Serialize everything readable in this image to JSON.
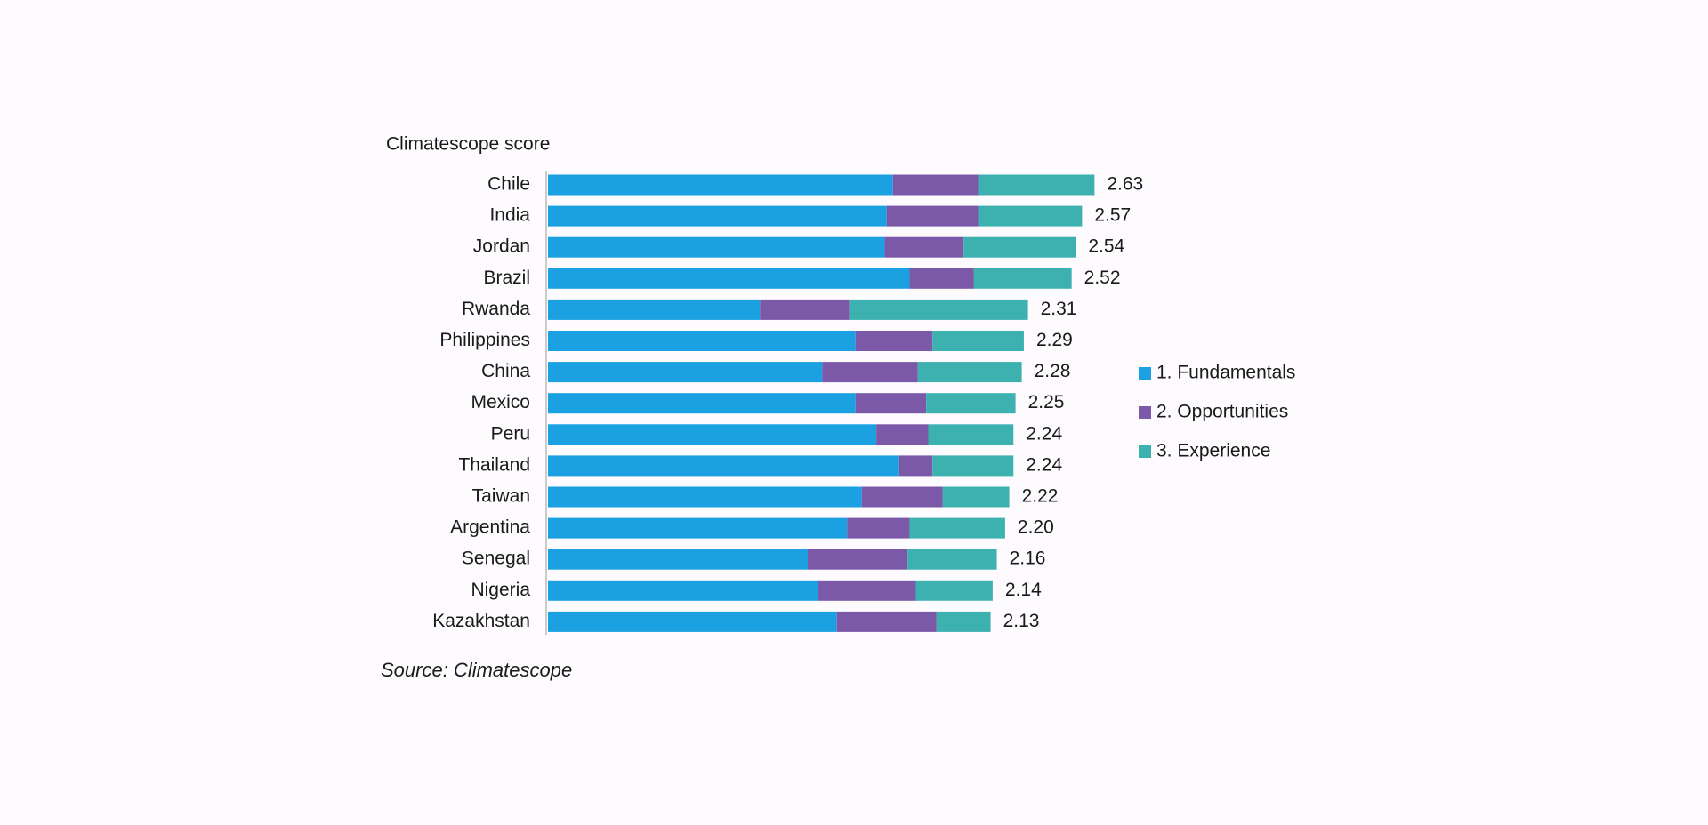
{
  "chart_data": {
    "type": "stacked-bar-horizontal",
    "title": "Climatescope score",
    "source": "Source: Climatescope",
    "categories": [
      "Chile",
      "India",
      "Jordan",
      "Brazil",
      "Rwanda",
      "Philippines",
      "China",
      "Mexico",
      "Peru",
      "Thailand",
      "Taiwan",
      "Argentina",
      "Senegal",
      "Nigeria",
      "Kazakhstan"
    ],
    "series": [
      {
        "name": "1. Fundamentals",
        "color": "#1ba1e2",
        "values": [
          1.66,
          1.63,
          1.62,
          1.74,
          1.02,
          1.48,
          1.32,
          1.48,
          1.58,
          1.69,
          1.51,
          1.44,
          1.25,
          1.3,
          1.39
        ]
      },
      {
        "name": "2. Opportunities",
        "color": "#7b59a8",
        "values": [
          0.41,
          0.44,
          0.38,
          0.31,
          0.43,
          0.37,
          0.46,
          0.34,
          0.25,
          0.16,
          0.39,
          0.3,
          0.48,
          0.47,
          0.48
        ]
      },
      {
        "name": "3. Experience",
        "color": "#3db1b0",
        "values": [
          0.56,
          0.5,
          0.54,
          0.47,
          0.86,
          0.44,
          0.5,
          0.43,
          0.41,
          0.39,
          0.32,
          0.46,
          0.43,
          0.37,
          0.26
        ]
      }
    ],
    "values": [
      2.63,
      2.57,
      2.54,
      2.52,
      2.31,
      2.29,
      2.28,
      2.25,
      2.24,
      2.24,
      2.22,
      2.2,
      2.16,
      2.14,
      2.13
    ],
    "value_labels": [
      "2.63",
      "2.57",
      "2.54",
      "2.52",
      "2.31",
      "2.29",
      "2.28",
      "2.25",
      "2.24",
      "2.24",
      "2.22",
      "2.20",
      "2.16",
      "2.14",
      "2.13"
    ],
    "legend": "right"
  }
}
